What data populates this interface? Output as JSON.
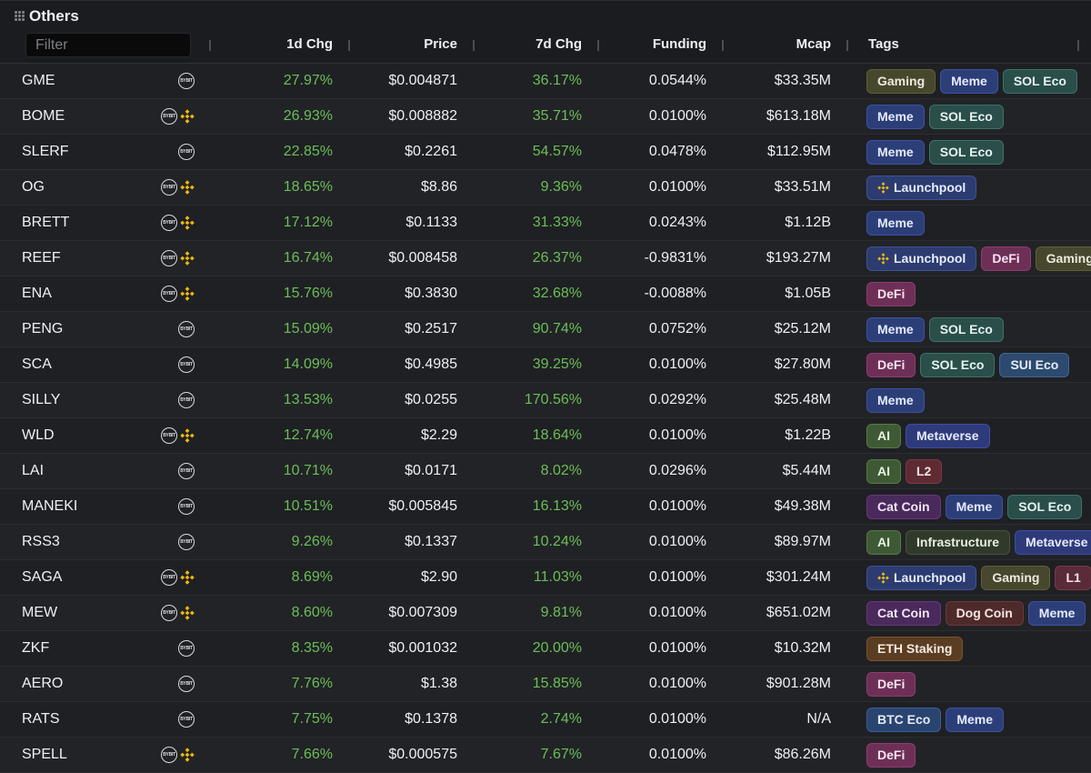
{
  "panel": {
    "title": "Others"
  },
  "filter": {
    "placeholder": "Filter",
    "value": ""
  },
  "columns": {
    "chg1d": "1d Chg",
    "price": "Price",
    "chg7d": "7d Chg",
    "funding": "Funding",
    "mcap": "Mcap",
    "tags": "Tags"
  },
  "tag_colors": {
    "Gaming": {
      "bg": "#46472c",
      "border": "#5e6038",
      "fg": "#eceadf"
    },
    "Meme": {
      "bg": "#2c3e78",
      "border": "#3d52a0",
      "fg": "#e6ebff"
    },
    "SOL Eco": {
      "bg": "#2a4e4a",
      "border": "#3f716b",
      "fg": "#e4f3f1"
    },
    "Launchpool": {
      "bg": "#2c3c70",
      "border": "#3f5294",
      "fg": "#e6ebff"
    },
    "DeFi": {
      "bg": "#6e2f57",
      "border": "#8c3d6f",
      "fg": "#f7e4ef"
    },
    "SUI Eco": {
      "bg": "#2d4a6e",
      "border": "#3f6394",
      "fg": "#e4eefb"
    },
    "AI": {
      "bg": "#3d5a34",
      "border": "#557a48",
      "fg": "#e8f3e2"
    },
    "Metaverse": {
      "bg": "#2f3a7a",
      "border": "#3f4ea2",
      "fg": "#e6eaff"
    },
    "L2": {
      "bg": "#5e2b32",
      "border": "#7c3942",
      "fg": "#f6e3e6"
    },
    "Cat Coin": {
      "bg": "#4a2a5c",
      "border": "#65397c",
      "fg": "#f1e5f7"
    },
    "Infrastructure": {
      "bg": "#2f3a2a",
      "border": "#46543e",
      "fg": "#e7ede3"
    },
    "L1": {
      "bg": "#5a2b38",
      "border": "#783947",
      "fg": "#f6e3e8"
    },
    "Dog Coin": {
      "bg": "#4e2a2a",
      "border": "#6b3a3a",
      "fg": "#f6e4e4"
    },
    "ETH Staking": {
      "bg": "#5a3d22",
      "border": "#7a532e",
      "fg": "#f6eadf"
    },
    "BTC Eco": {
      "bg": "#2a4470",
      "border": "#3b5c96",
      "fg": "#e4ecfb"
    }
  },
  "rows": [
    {
      "symbol": "GME",
      "bybit": true,
      "binance": false,
      "chg1d": "27.97%",
      "price": "$0.004871",
      "chg7d": "36.17%",
      "funding": "0.0544%",
      "mcap": "$33.35M",
      "tags": [
        "Gaming",
        "Meme",
        "SOL Eco"
      ]
    },
    {
      "symbol": "BOME",
      "bybit": true,
      "binance": true,
      "chg1d": "26.93%",
      "price": "$0.008882",
      "chg7d": "35.71%",
      "funding": "0.0100%",
      "mcap": "$613.18M",
      "tags": [
        "Meme",
        "SOL Eco"
      ]
    },
    {
      "symbol": "SLERF",
      "bybit": true,
      "binance": false,
      "chg1d": "22.85%",
      "price": "$0.2261",
      "chg7d": "54.57%",
      "funding": "0.0478%",
      "mcap": "$112.95M",
      "tags": [
        "Meme",
        "SOL Eco"
      ]
    },
    {
      "symbol": "OG",
      "bybit": true,
      "binance": true,
      "chg1d": "18.65%",
      "price": "$8.86",
      "chg7d": "9.36%",
      "funding": "0.0100%",
      "mcap": "$33.51M",
      "tags": [
        "Launchpool"
      ]
    },
    {
      "symbol": "BRETT",
      "bybit": true,
      "binance": true,
      "chg1d": "17.12%",
      "price": "$0.1133",
      "chg7d": "31.33%",
      "funding": "0.0243%",
      "mcap": "$1.12B",
      "tags": [
        "Meme"
      ]
    },
    {
      "symbol": "REEF",
      "bybit": true,
      "binance": true,
      "chg1d": "16.74%",
      "price": "$0.008458",
      "chg7d": "26.37%",
      "funding": "-0.9831%",
      "mcap": "$193.27M",
      "tags": [
        "Launchpool",
        "DeFi",
        "Gaming"
      ]
    },
    {
      "symbol": "ENA",
      "bybit": true,
      "binance": true,
      "chg1d": "15.76%",
      "price": "$0.3830",
      "chg7d": "32.68%",
      "funding": "-0.0088%",
      "mcap": "$1.05B",
      "tags": [
        "DeFi"
      ]
    },
    {
      "symbol": "PENG",
      "bybit": true,
      "binance": false,
      "chg1d": "15.09%",
      "price": "$0.2517",
      "chg7d": "90.74%",
      "funding": "0.0752%",
      "mcap": "$25.12M",
      "tags": [
        "Meme",
        "SOL Eco"
      ]
    },
    {
      "symbol": "SCA",
      "bybit": true,
      "binance": false,
      "chg1d": "14.09%",
      "price": "$0.4985",
      "chg7d": "39.25%",
      "funding": "0.0100%",
      "mcap": "$27.80M",
      "tags": [
        "DeFi",
        "SOL Eco",
        "SUI Eco"
      ]
    },
    {
      "symbol": "SILLY",
      "bybit": true,
      "binance": false,
      "chg1d": "13.53%",
      "price": "$0.0255",
      "chg7d": "170.56%",
      "funding": "0.0292%",
      "mcap": "$25.48M",
      "tags": [
        "Meme"
      ]
    },
    {
      "symbol": "WLD",
      "bybit": true,
      "binance": true,
      "chg1d": "12.74%",
      "price": "$2.29",
      "chg7d": "18.64%",
      "funding": "0.0100%",
      "mcap": "$1.22B",
      "tags": [
        "AI",
        "Metaverse"
      ]
    },
    {
      "symbol": "LAI",
      "bybit": true,
      "binance": false,
      "chg1d": "10.71%",
      "price": "$0.0171",
      "chg7d": "8.02%",
      "funding": "0.0296%",
      "mcap": "$5.44M",
      "tags": [
        "AI",
        "L2"
      ]
    },
    {
      "symbol": "MANEKI",
      "bybit": true,
      "binance": false,
      "chg1d": "10.51%",
      "price": "$0.005845",
      "chg7d": "16.13%",
      "funding": "0.0100%",
      "mcap": "$49.38M",
      "tags": [
        "Cat Coin",
        "Meme",
        "SOL Eco"
      ]
    },
    {
      "symbol": "RSS3",
      "bybit": true,
      "binance": false,
      "chg1d": "9.26%",
      "price": "$0.1337",
      "chg7d": "10.24%",
      "funding": "0.0100%",
      "mcap": "$89.97M",
      "tags": [
        "AI",
        "Infrastructure",
        "Metaverse"
      ]
    },
    {
      "symbol": "SAGA",
      "bybit": true,
      "binance": true,
      "chg1d": "8.69%",
      "price": "$2.90",
      "chg7d": "11.03%",
      "funding": "0.0100%",
      "mcap": "$301.24M",
      "tags": [
        "Launchpool",
        "Gaming",
        "L1"
      ]
    },
    {
      "symbol": "MEW",
      "bybit": true,
      "binance": true,
      "chg1d": "8.60%",
      "price": "$0.007309",
      "chg7d": "9.81%",
      "funding": "0.0100%",
      "mcap": "$651.02M",
      "tags": [
        "Cat Coin",
        "Dog Coin",
        "Meme"
      ]
    },
    {
      "symbol": "ZKF",
      "bybit": true,
      "binance": false,
      "chg1d": "8.35%",
      "price": "$0.001032",
      "chg7d": "20.00%",
      "funding": "0.0100%",
      "mcap": "$10.32M",
      "tags": [
        "ETH Staking"
      ]
    },
    {
      "symbol": "AERO",
      "bybit": true,
      "binance": false,
      "chg1d": "7.76%",
      "price": "$1.38",
      "chg7d": "15.85%",
      "funding": "0.0100%",
      "mcap": "$901.28M",
      "tags": [
        "DeFi"
      ]
    },
    {
      "symbol": "RATS",
      "bybit": true,
      "binance": false,
      "chg1d": "7.75%",
      "price": "$0.1378",
      "chg7d": "2.74%",
      "funding": "0.0100%",
      "mcap": "N/A",
      "tags": [
        "BTC Eco",
        "Meme"
      ]
    },
    {
      "symbol": "SPELL",
      "bybit": true,
      "binance": true,
      "chg1d": "7.66%",
      "price": "$0.000575",
      "chg7d": "7.67%",
      "funding": "0.0100%",
      "mcap": "$86.26M",
      "tags": [
        "DeFi"
      ]
    }
  ],
  "icons": {
    "bybit": "bybit-logo-icon",
    "binance": "binance-logo-icon",
    "launchpool": "binance-logo-icon",
    "grip": "drag-grip-icon"
  }
}
